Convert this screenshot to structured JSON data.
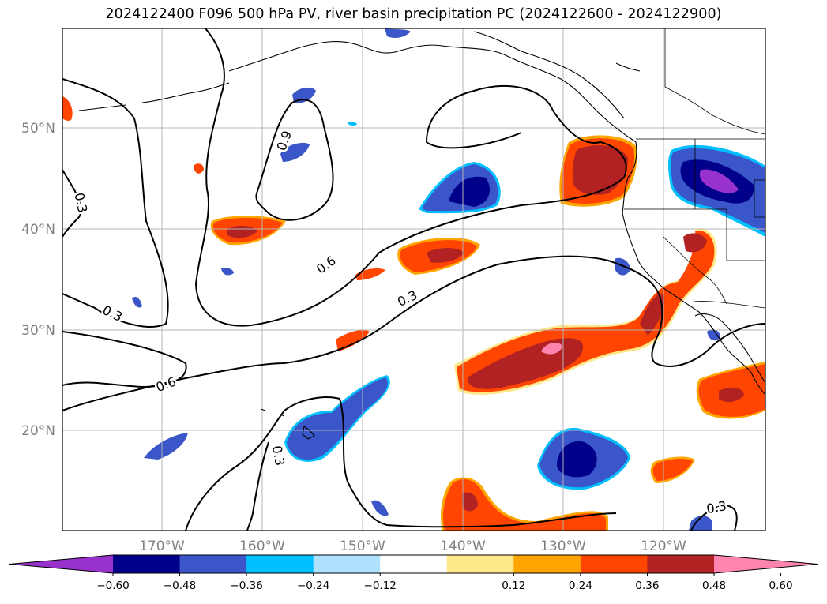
{
  "title": "2024122400 F096 500 hPa PV, river basin precipitation PC (2024122600 - 2024122900)",
  "map": {
    "lat_labels": [
      "50°N",
      "40°N",
      "30°N",
      "20°N"
    ],
    "lon_labels": [
      "170°W",
      "160°W",
      "150°W",
      "140°W",
      "130°W",
      "120°W"
    ],
    "contour_labels": [
      "0.9",
      "0.3",
      "0.6",
      "0.3",
      "0.3",
      "0.6",
      "0.3",
      "0.3"
    ],
    "gridlines": true
  },
  "colorbar": {
    "ticks": [
      "−0.60",
      "−0.48",
      "−0.36",
      "−0.24",
      "−0.12",
      "0.12",
      "0.24",
      "0.36",
      "0.48",
      "0.60"
    ],
    "colors": [
      "#9932cc",
      "#00008b",
      "#3a56c8",
      "#00bfff",
      "#b0e2ff",
      "#ffffff",
      "#ffe88a",
      "#ffa500",
      "#ff4500",
      "#b22222",
      "#ff85b0"
    ]
  }
}
